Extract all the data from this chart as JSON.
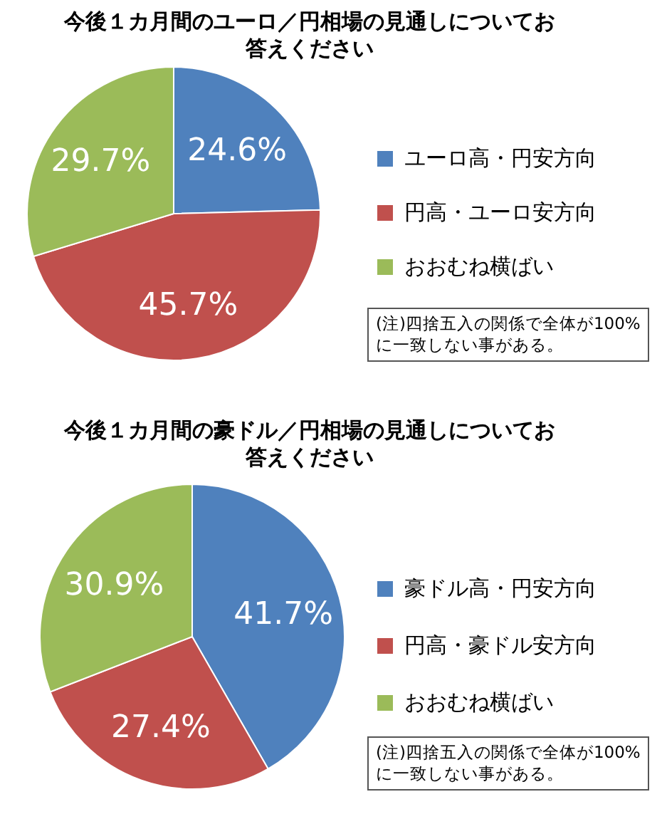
{
  "chart_data": [
    {
      "type": "pie",
      "title": "今後１カ月間のユーロ／円相場の見通しについてお答えください",
      "categories": [
        "ユーロ高・円安方向",
        "円高・ユーロ安方向",
        "おおむね横ばい"
      ],
      "values": [
        24.6,
        45.7,
        29.7
      ],
      "colors": [
        "#4f81bd",
        "#c0504d",
        "#9bbb59"
      ],
      "value_labels": [
        "24.6%",
        "45.7%",
        "29.7%"
      ],
      "legend": "right",
      "annotations": [
        "(注)四捨五入の関係で全体が100%に一致しない事がある。"
      ]
    },
    {
      "type": "pie",
      "title": "今後１カ月間の豪ドル／円相場の見通しについてお答えください",
      "categories": [
        "豪ドル高・円安方向",
        "円高・豪ドル安方向",
        "おおむね横ばい"
      ],
      "values": [
        41.7,
        27.4,
        30.9
      ],
      "colors": [
        "#4f81bd",
        "#c0504d",
        "#9bbb59"
      ],
      "value_labels": [
        "41.7%",
        "27.4%",
        "30.9%"
      ],
      "legend": "right",
      "annotations": [
        "(注)四捨五入の関係で全体が100%に一致しない事がある。"
      ]
    }
  ]
}
